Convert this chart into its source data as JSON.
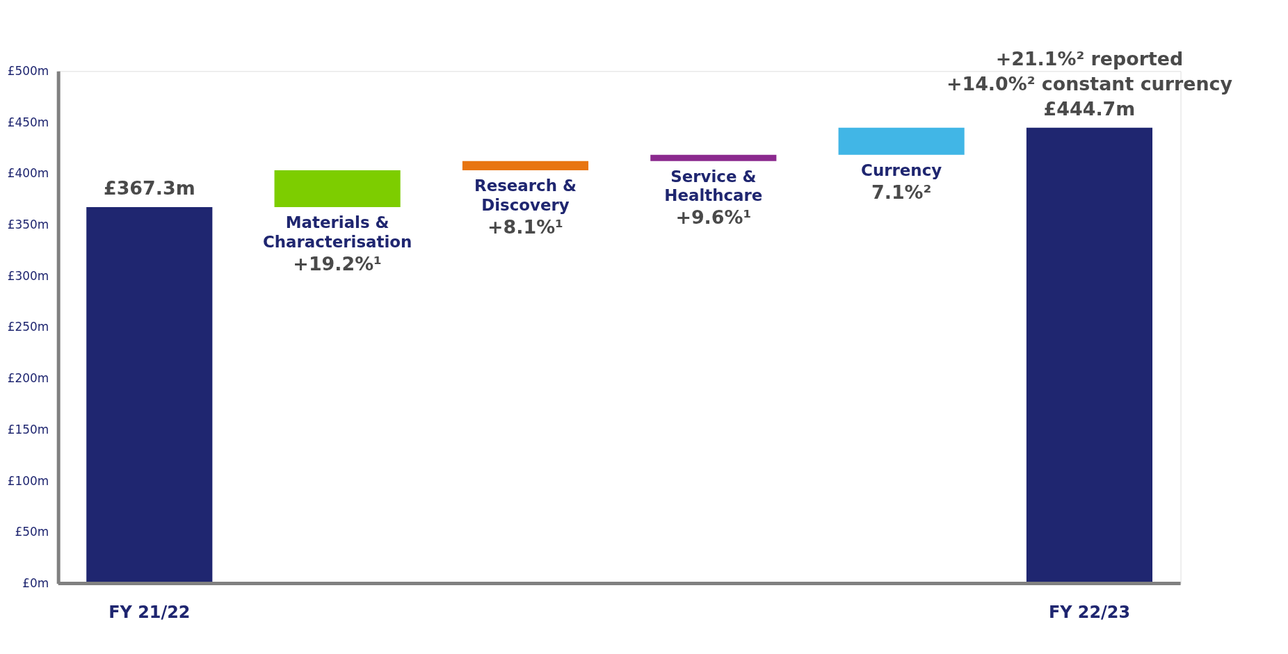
{
  "chart_data": {
    "type": "bar",
    "categories": [
      "FY 21/22",
      "Materials & Characterisation",
      "Research & Discovery",
      "Service & Healthcare",
      "Currency",
      "FY 22/23"
    ],
    "values": [
      367.3,
      36,
      9,
      6,
      26.4,
      444.7
    ],
    "base": [
      0,
      367.3,
      403.3,
      412.3,
      418.3,
      0
    ],
    "colors": [
      "#1f2670",
      "#7dcd00",
      "#e87511",
      "#8b2a8e",
      "#41b6e6",
      "#1f2670"
    ],
    "value_labels": [
      "£367.3m",
      null,
      null,
      null,
      null,
      "£444.7m"
    ],
    "annotations": [
      "+19.2%¹",
      "+8.1%¹",
      "+9.6%¹",
      "7.1%²",
      "+21.1%² reported",
      "+14.0%² constant currency"
    ],
    "ylim": [
      0,
      500
    ],
    "yticks": [
      {
        "value": 0,
        "label": "£0m"
      },
      {
        "value": 50,
        "label": "£50m"
      },
      {
        "value": 100,
        "label": "£100m"
      },
      {
        "value": 150,
        "label": "£150m"
      },
      {
        "value": 200,
        "label": "£200m"
      },
      {
        "value": 250,
        "label": "£250m"
      },
      {
        "value": 300,
        "label": "£300m"
      },
      {
        "value": 350,
        "label": "£350m"
      },
      {
        "value": 400,
        "label": "£400m"
      },
      {
        "value": 450,
        "label": "£450m"
      },
      {
        "value": 500,
        "label": "£500m"
      }
    ],
    "grid": false
  }
}
